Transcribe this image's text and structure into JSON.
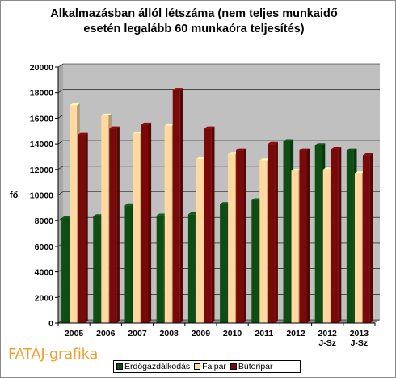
{
  "title_line1": "Alkalmazásban állól létszáma (nem teljes munkaidő",
  "title_line2": "esetén legalább 60 munkaóra teljesítés)",
  "brand": "FATÁJ-grafika",
  "colors": {
    "erdo": "#0e4d14",
    "fai": "#ffd9a0",
    "buto": "#7a0a0a",
    "plot_bg": "#c0c0c0"
  },
  "chart_data": {
    "type": "bar",
    "title": "Alkalmazásban állól létszáma (nem teljes munkaidő esetén legalább 60 munkaóra teljesítés)",
    "ylabel": "fő",
    "xlabel": "",
    "ylim": [
      0,
      20000
    ],
    "yticks": [
      0,
      2000,
      4000,
      6000,
      8000,
      10000,
      12000,
      14000,
      16000,
      18000,
      20000
    ],
    "grid": true,
    "legend_position": "bottom",
    "categories": [
      "2005",
      "2006",
      "2007",
      "2008",
      "2009",
      "2010",
      "2011",
      "2012",
      "2012 J-Sz",
      "2013 J-Sz"
    ],
    "category_lines": [
      [
        "2005"
      ],
      [
        "2006"
      ],
      [
        "2007"
      ],
      [
        "2008"
      ],
      [
        "2009"
      ],
      [
        "2010"
      ],
      [
        "2011"
      ],
      [
        "2012"
      ],
      [
        "2012",
        "J-Sz"
      ],
      [
        "2013",
        "J-Sz"
      ]
    ],
    "series": [
      {
        "name": "Erdőgazdálkodás",
        "values": [
          8200,
          8350,
          9200,
          8400,
          8500,
          9300,
          9600,
          14200,
          13900,
          13500
        ]
      },
      {
        "name": "Faipar",
        "values": [
          17000,
          16200,
          14800,
          15400,
          12800,
          13200,
          12700,
          11900,
          12000,
          11700
        ]
      },
      {
        "name": "Bútoripar",
        "values": [
          14700,
          15200,
          15500,
          18200,
          15200,
          13500,
          14000,
          13500,
          13600,
          13100
        ]
      }
    ]
  }
}
